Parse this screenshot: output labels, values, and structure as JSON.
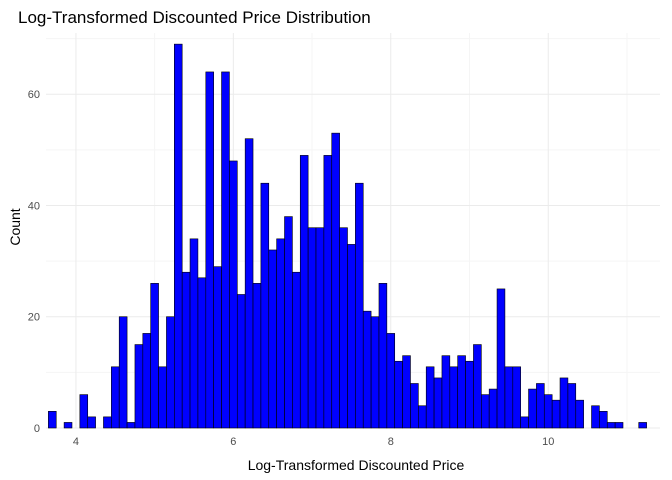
{
  "chart_data": {
    "type": "bar",
    "title": "Log-Transformed Discounted Price Distribution",
    "xlabel": "Log-Transformed Discounted Price",
    "ylabel": "Count",
    "xlim": [
      3.62,
      11.42
    ],
    "ylim": [
      0,
      71
    ],
    "x_ticks": [
      4,
      6,
      8,
      10
    ],
    "y_ticks": [
      0,
      20,
      40,
      60
    ],
    "x_tick_labels": [
      "4",
      "6",
      "8",
      "10"
    ],
    "y_tick_labels": [
      "0",
      "20",
      "40",
      "60"
    ],
    "bin_width": 0.1,
    "x_start": 3.7,
    "counts": [
      3,
      0,
      1,
      0,
      6,
      2,
      0,
      2,
      11,
      20,
      1,
      15,
      17,
      26,
      11,
      20,
      69,
      28,
      34,
      27,
      64,
      29,
      64,
      48,
      24,
      52,
      26,
      44,
      32,
      34,
      38,
      28,
      49,
      36,
      36,
      49,
      53,
      36,
      33,
      44,
      21,
      20,
      26,
      17,
      12,
      13,
      8,
      4,
      11,
      9,
      13,
      11,
      13,
      12,
      15,
      6,
      7,
      25,
      11,
      11,
      2,
      7,
      8,
      6,
      5,
      9,
      8,
      5,
      0,
      4,
      3,
      1,
      1,
      0,
      0,
      1
    ],
    "bar_fill": "#0000ff",
    "bar_stroke": "#000000",
    "grid": true,
    "grid_major_color": "#ebebeb",
    "grid_minor_color": "#f5f5f5",
    "legend": "none"
  }
}
